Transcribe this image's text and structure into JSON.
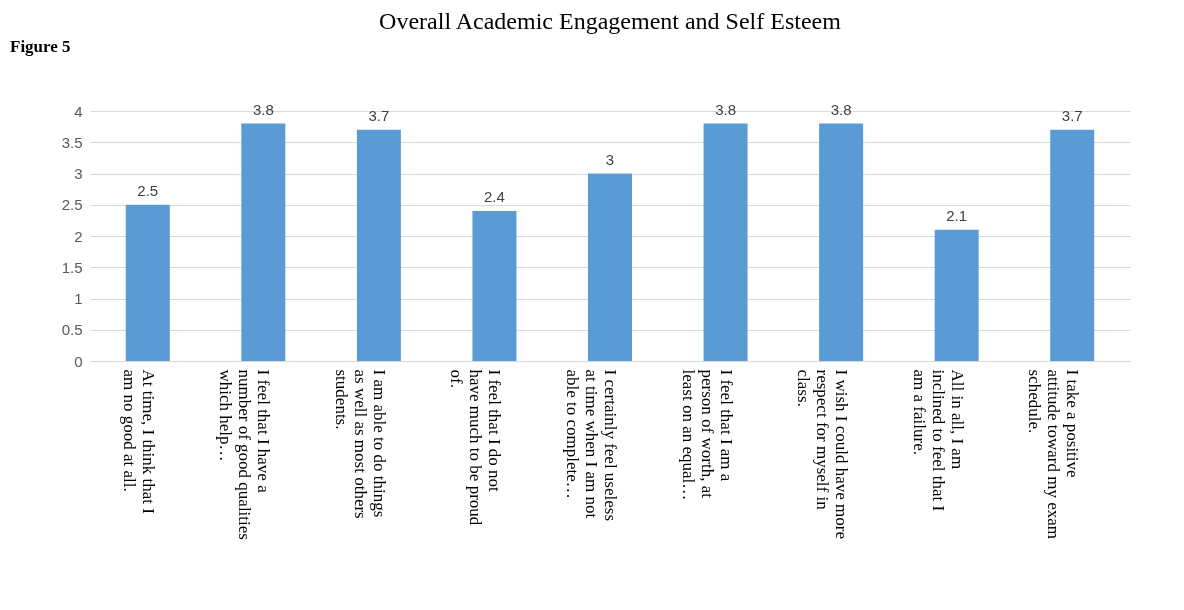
{
  "chart_data": {
    "type": "bar",
    "title": "Overall Academic Engagement and Self Esteem",
    "categories": [
      "At time, I think that I am no good at all.",
      "I feel that I have a number of good qualities which help…",
      "I am able to do things as well as most others students.",
      "I feel that I do not have much to be proud of.",
      "I certainly feel useless at time when I am not able to complete…",
      "I feel that I am a person of worth, at least on an equal…",
      "I wish I could have more respect for myself in class.",
      "All in all, I am inclined to feel that I am a failure.",
      "I take a positive attitude toward my exam schedule."
    ],
    "values": [
      2.5,
      3.8,
      3.7,
      2.4,
      3.0,
      3.8,
      3.8,
      2.1,
      3.7
    ],
    "color": "#5b9bd5",
    "ylim": [
      0,
      4
    ],
    "yticks": [
      0,
      0.5,
      1,
      1.5,
      2,
      2.5,
      3,
      3.5,
      4
    ],
    "grid": "y",
    "data_labels": true,
    "annotations": [
      "Figure 5"
    ]
  }
}
